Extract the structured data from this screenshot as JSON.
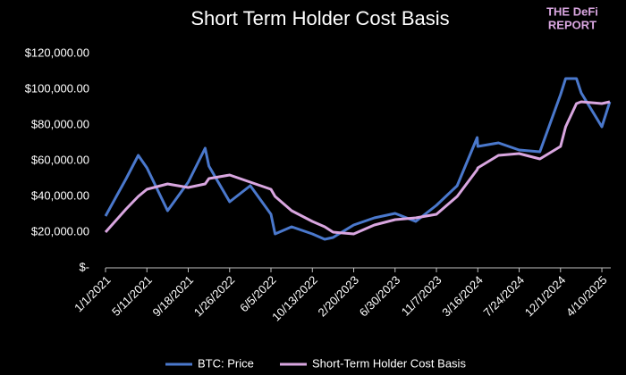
{
  "logo": {
    "line1": "THE DeFi",
    "line2": "REPORT"
  },
  "chart_data": {
    "type": "line",
    "title": "Short Term Holder Cost Basis",
    "x": [
      "1/1/2021",
      "3/7/2021",
      "4/14/2021",
      "5/11/2021",
      "7/15/2021",
      "9/18/2021",
      "11/10/2021",
      "11/22/2021",
      "1/26/2022",
      "4/1/2022",
      "6/5/2022",
      "6/18/2022",
      "8/9/2022",
      "10/13/2022",
      "11/21/2022",
      "12/17/2022",
      "2/20/2023",
      "4/26/2023",
      "6/30/2023",
      "9/3/2023",
      "11/7/2023",
      "1/11/2024",
      "3/14/2024",
      "3/16/2024",
      "5/20/2024",
      "7/24/2024",
      "9/27/2024",
      "12/1/2024",
      "12/17/2024",
      "1/20/2025",
      "2/4/2025",
      "4/10/2025",
      "5/5/2025"
    ],
    "series": [
      {
        "name": "BTC: Price",
        "color": "#4a78cc",
        "values": [
          29000,
          50000,
          63000,
          56000,
          32000,
          48000,
          67000,
          57000,
          37000,
          46000,
          30000,
          19000,
          23000,
          19000,
          16000,
          17000,
          24000,
          28000,
          30500,
          26000,
          35000,
          46000,
          73000,
          68000,
          70000,
          66000,
          65000,
          97000,
          106000,
          106000,
          98000,
          79000,
          93000
        ]
      },
      {
        "name": "Short-Term Holder Cost Basis",
        "color": "#d9a6e0",
        "values": [
          20000,
          33000,
          40000,
          44000,
          47000,
          45000,
          47000,
          50000,
          52000,
          48000,
          44000,
          40000,
          32000,
          26000,
          23000,
          20000,
          19000,
          24000,
          27000,
          28000,
          30000,
          40000,
          55000,
          56000,
          63000,
          64000,
          61000,
          68000,
          79000,
          92000,
          93000,
          92000,
          93000
        ]
      }
    ],
    "xlim": [
      "1/1/2021",
      "5/8/2025"
    ],
    "xticks": [
      "1/1/2021",
      "5/11/2021",
      "9/18/2021",
      "1/26/2022",
      "6/5/2022",
      "10/13/2022",
      "2/20/2023",
      "6/30/2023",
      "11/7/2023",
      "3/16/2024",
      "7/24/2024",
      "12/1/2024",
      "4/10/2025"
    ],
    "ylim": [
      0,
      120000
    ],
    "yticks": [
      {
        "value": 0,
        "label": "$-"
      },
      {
        "value": 20000,
        "label": "$20,000.00"
      },
      {
        "value": 40000,
        "label": "$40,000.00"
      },
      {
        "value": 60000,
        "label": "$60,000.00"
      },
      {
        "value": 80000,
        "label": "$80,000.00"
      },
      {
        "value": 100000,
        "label": "$100,000.00"
      },
      {
        "value": 120000,
        "label": "$120,000.00"
      }
    ],
    "legend": "bottom"
  }
}
